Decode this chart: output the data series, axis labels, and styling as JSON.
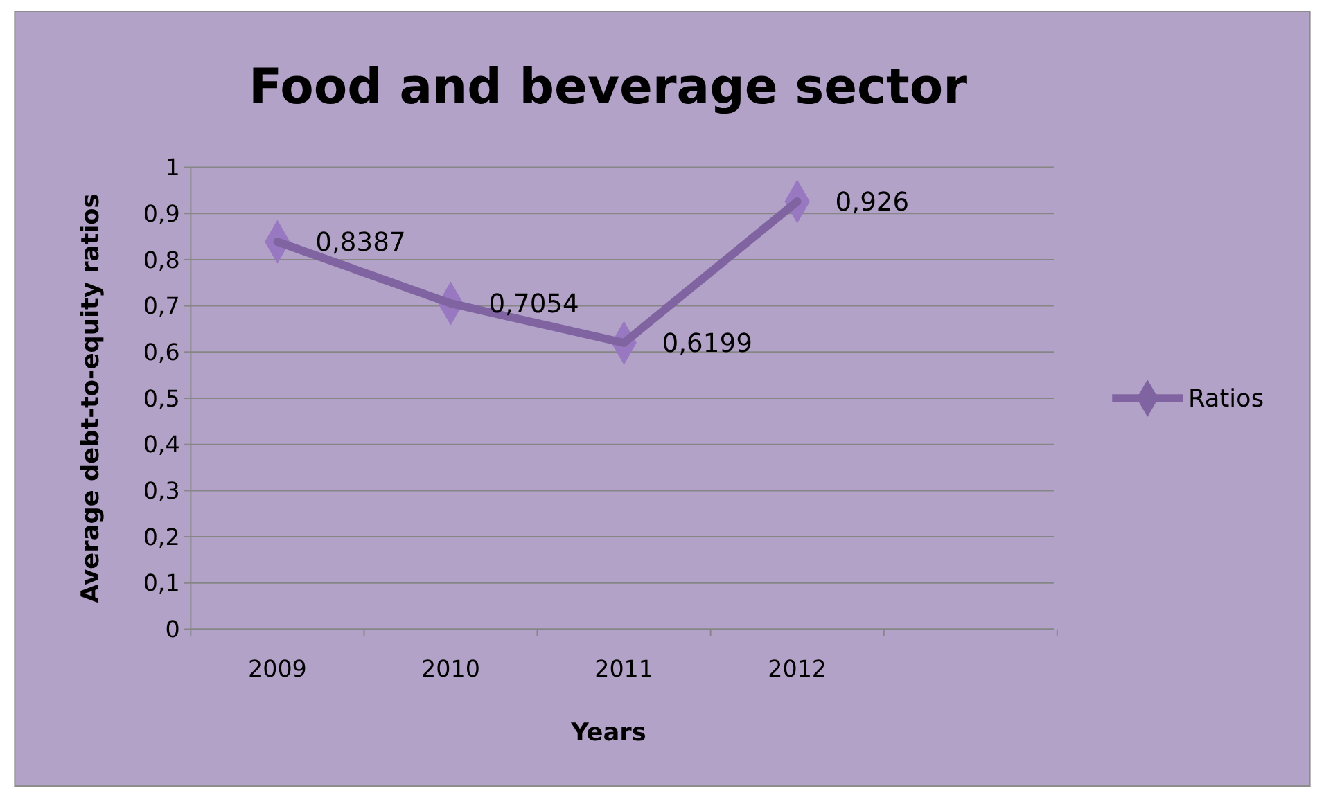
{
  "chart_data": {
    "type": "line",
    "title": "Food and beverage  sector",
    "xlabel": "Years",
    "ylabel": "Average debt-to-equity ratios",
    "categories": [
      "2009",
      "2010",
      "2011",
      "2012"
    ],
    "series": [
      {
        "name": "Ratios",
        "color": "#8064a2",
        "values": [
          0.8387,
          0.7054,
          0.6199,
          0.926
        ],
        "value_labels": [
          "0,8387",
          "0,7054",
          "0,6199",
          "0,926"
        ]
      }
    ],
    "ylim": [
      0,
      1
    ],
    "yticks": [
      0,
      {
        "value": 0.1,
        "label": "0,1"
      },
      {
        "value": 0.2,
        "label": "0,2"
      },
      {
        "value": 0.3,
        "label": "0,3"
      },
      {
        "value": 0.4,
        "label": "0,4"
      },
      {
        "value": 0.5,
        "label": "0,5"
      },
      {
        "value": 0.6,
        "label": "0,6"
      },
      {
        "value": 0.7,
        "label": "0,7"
      },
      {
        "value": 0.8,
        "label": "0,8"
      },
      {
        "value": 0.9,
        "label": "0,9"
      },
      1
    ],
    "grid": "y",
    "legend": "right",
    "marker": "diamond",
    "line_style": "solid"
  }
}
